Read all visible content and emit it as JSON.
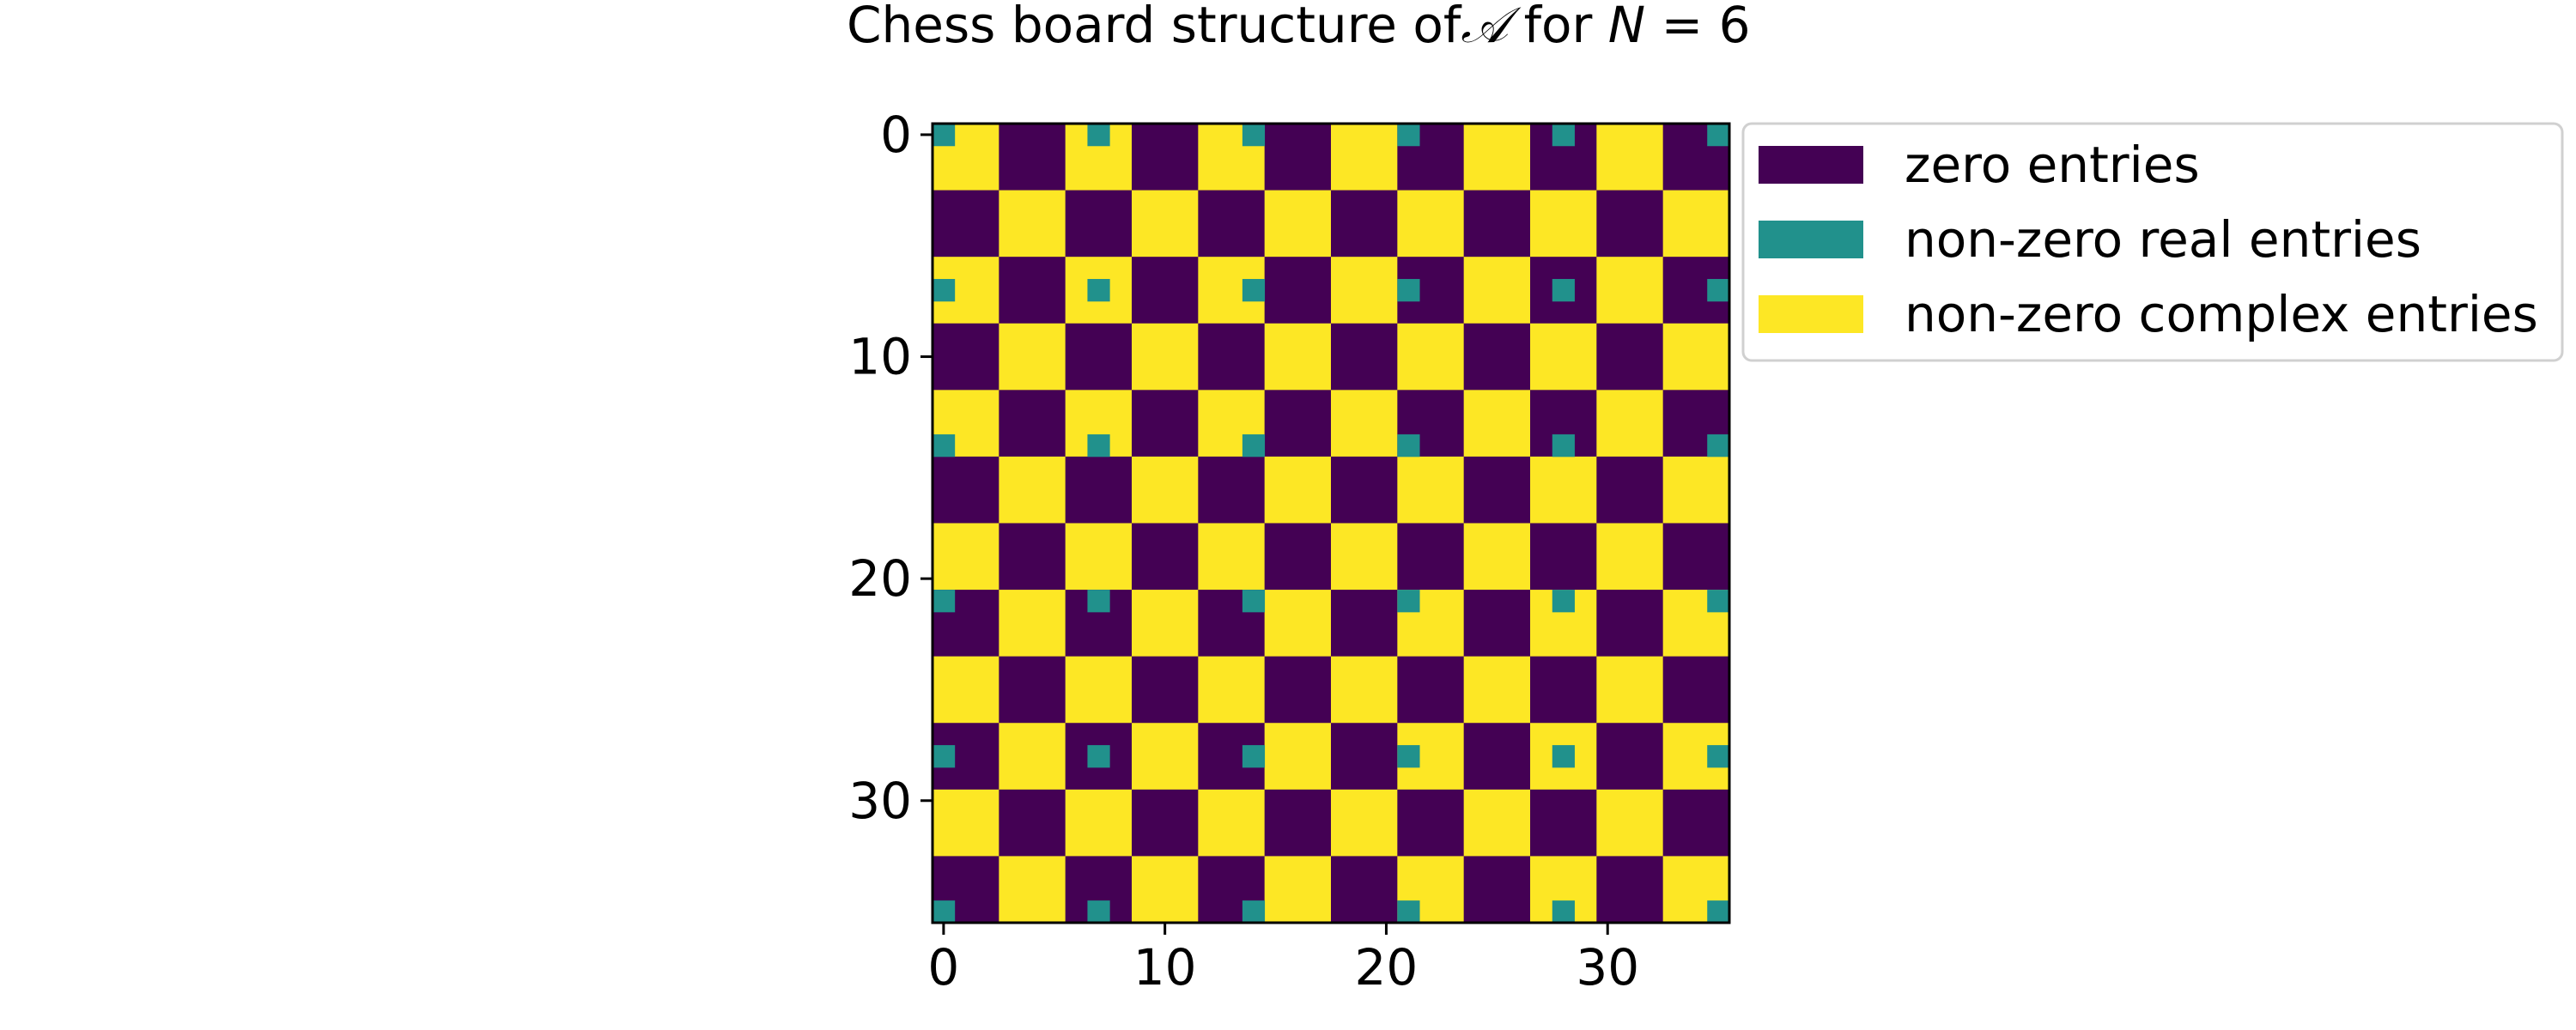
{
  "chart_data": {
    "type": "heatmap",
    "title_prefix": "Chess board structure of",
    "title_symbol": "𝒜",
    "title_middle": " for ",
    "title_var": "N",
    "title_eq": " = 6",
    "matrix_size": 36,
    "row_blocks": [
      3,
      3,
      3,
      3,
      3,
      3,
      3,
      3,
      3,
      3,
      3,
      3
    ],
    "col_blocks": [
      3,
      3,
      3,
      3,
      3,
      3,
      3,
      3,
      3,
      3,
      3,
      3
    ],
    "zero_blocks_rows_even": [
      1,
      3,
      5,
      7,
      9,
      11
    ],
    "real_entry_indices": [
      0,
      7,
      14,
      21,
      28,
      35
    ],
    "categories": [
      "zero entries",
      "non-zero real entries",
      "non-zero complex entries"
    ],
    "colors": {
      "zero": "#440154",
      "real": "#21918c",
      "complex": "#fde725"
    },
    "x_ticks": [
      0,
      10,
      20,
      30
    ],
    "y_ticks": [
      0,
      10,
      20,
      30
    ],
    "xlim": [
      -0.5,
      35.5
    ],
    "ylim": [
      35.5,
      -0.5
    ],
    "xlabel": "",
    "ylabel": "",
    "legend_position": "upper right, outside axes"
  }
}
